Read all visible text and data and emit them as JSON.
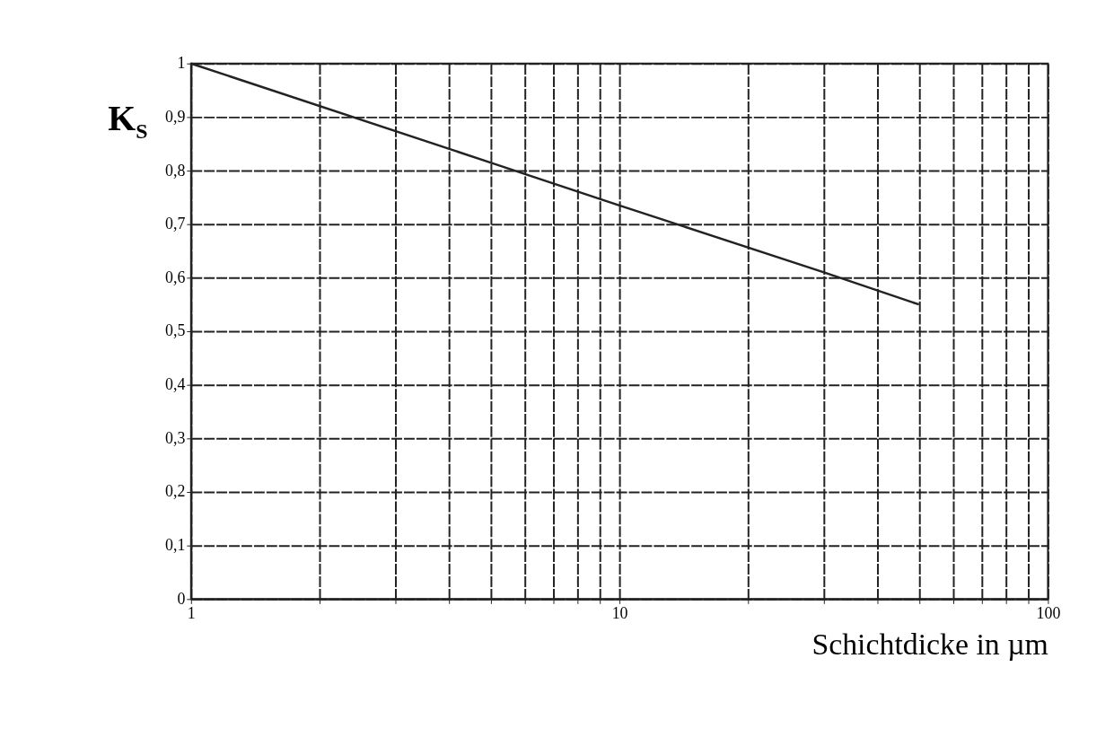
{
  "chart_data": {
    "type": "line",
    "xlabel": "Schichtdicke in µm",
    "ylabel": "K$_{S}$",
    "x": [
      1,
      5,
      10,
      30,
      50
    ],
    "series": [
      {
        "color": "#222222",
        "values": [
          1.0,
          0.815,
          0.735,
          0.61,
          0.55
        ]
      }
    ],
    "log": "x",
    "xlim": [
      1,
      100
    ],
    "ylim": [
      0,
      1
    ],
    "xticks": [
      1,
      {
        "value": 2,
        "label": null
      },
      {
        "value": 3,
        "label": null
      },
      {
        "value": 4,
        "label": null
      },
      {
        "value": 5,
        "label": null
      },
      {
        "value": 6,
        "label": null
      },
      {
        "value": 7,
        "label": null
      },
      {
        "value": 8,
        "label": null
      },
      {
        "value": 9,
        "label": null
      },
      10,
      {
        "value": 20,
        "label": null
      },
      {
        "value": 30,
        "label": null
      },
      {
        "value": 40,
        "label": null
      },
      {
        "value": 50,
        "label": null
      },
      {
        "value": 60,
        "label": null
      },
      {
        "value": 70,
        "label": null
      },
      {
        "value": 80,
        "label": null
      },
      {
        "value": 90,
        "label": null
      },
      100
    ],
    "yticks": [
      0,
      {
        "value": 0.1,
        "label": "0,1"
      },
      {
        "value": 0.2,
        "label": "0,2"
      },
      {
        "value": 0.3,
        "label": "0,3"
      },
      {
        "value": 0.4,
        "label": "0,4"
      },
      {
        "value": 0.5,
        "label": "0,5"
      },
      {
        "value": 0.6,
        "label": "0,6"
      },
      {
        "value": 0.7,
        "label": "0,7"
      },
      {
        "value": 0.8,
        "label": "0,8"
      },
      {
        "value": 0.9,
        "label": "0,9"
      },
      1
    ],
    "grid": true,
    "marker": "none",
    "line_style": "solid"
  }
}
